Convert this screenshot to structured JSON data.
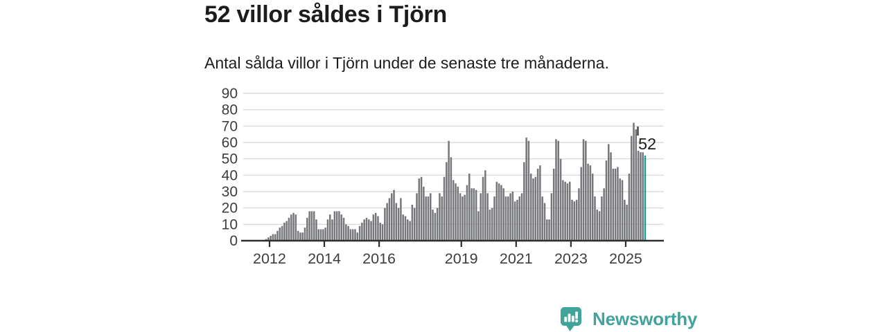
{
  "chart_data": {
    "type": "bar",
    "title": "52 villor såldes i Tjörn",
    "subtitle": "Antal sålda villor i Tjörn under de senaste tre månaderna.",
    "frequency": "monthly",
    "values": [
      1,
      2,
      3,
      4,
      4,
      6,
      8,
      9,
      11,
      12,
      14,
      16,
      17,
      16,
      6,
      5,
      5,
      8,
      14,
      18,
      18,
      18,
      13,
      7,
      7,
      7,
      8,
      13,
      16,
      13,
      18,
      18,
      18,
      16,
      14,
      10,
      9,
      7,
      7,
      7,
      5,
      9,
      11,
      13,
      14,
      13,
      12,
      16,
      17,
      15,
      11,
      10,
      20,
      23,
      26,
      29,
      31,
      23,
      20,
      26,
      16,
      15,
      13,
      12,
      22,
      20,
      29,
      38,
      39,
      33,
      27,
      27,
      29,
      19,
      17,
      20,
      29,
      27,
      39,
      48,
      61,
      51,
      37,
      35,
      33,
      29,
      27,
      28,
      34,
      41,
      32,
      32,
      31,
      18,
      29,
      39,
      43,
      29,
      19,
      20,
      27,
      36,
      35,
      34,
      32,
      27,
      27,
      29,
      30,
      24,
      25,
      27,
      29,
      48,
      63,
      61,
      41,
      38,
      39,
      44,
      46,
      27,
      23,
      13,
      13,
      29,
      44,
      62,
      61,
      50,
      37,
      36,
      35,
      36,
      25,
      24,
      25,
      32,
      45,
      62,
      61,
      47,
      46,
      41,
      27,
      19,
      18,
      27,
      32,
      49,
      59,
      54,
      44,
      44,
      45,
      38,
      37,
      25,
      22,
      41,
      64,
      72,
      68,
      55,
      54,
      54,
      52
    ],
    "x_ticks": [
      {
        "label": "2012",
        "index": 2
      },
      {
        "label": "2014",
        "index": 26
      },
      {
        "label": "2016",
        "index": 50
      },
      {
        "label": "2019",
        "index": 86
      },
      {
        "label": "2021",
        "index": 110
      },
      {
        "label": "2023",
        "index": 134
      },
      {
        "label": "2025",
        "index": 158
      }
    ],
    "yticks": [
      0,
      10,
      20,
      30,
      40,
      50,
      60,
      70,
      80,
      90
    ],
    "ylim": [
      0,
      90
    ],
    "grid": true,
    "legend": "none",
    "bar_color": "#76777b",
    "highlight_last": true,
    "highlight_color": "#16a0a1",
    "last_value_label": "52"
  },
  "footer": {
    "brand": "Newsworthy",
    "brand_color": "#41a39b"
  }
}
